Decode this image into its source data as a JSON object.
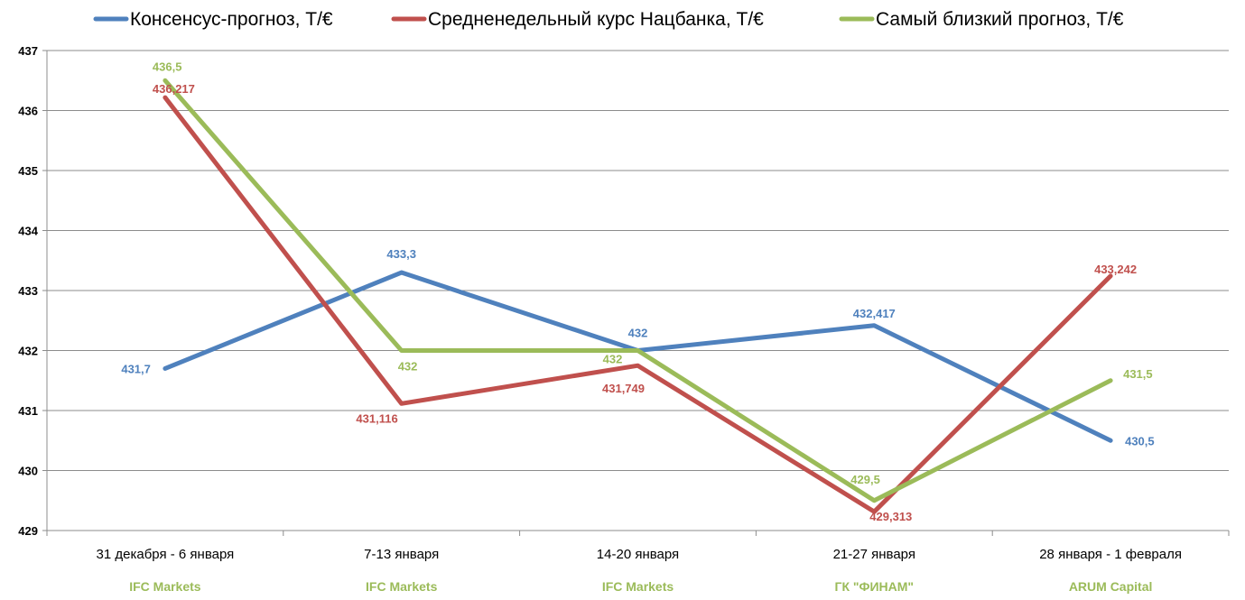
{
  "chart_data": {
    "type": "line",
    "categories": [
      "31 декабря - 6 января",
      "7-13 января",
      "14-20 января",
      "21-27 января",
      "28 января - 1 февраля"
    ],
    "category_sublabels": [
      "IFC Markets",
      "IFC Markets",
      "IFC Markets",
      "ГК \"ФИНАМ\"",
      "ARUM Capital"
    ],
    "sublabel_color": "#9bbb59",
    "series": [
      {
        "name": "Консенсус-прогноз, Т/€",
        "color": "#4f81bd",
        "values": [
          431.7,
          433.3,
          432,
          432.417,
          430.5
        ],
        "labels": [
          "431,7",
          "433,3",
          "432",
          "432,417",
          "430,5"
        ]
      },
      {
        "name": "Средненедельный курс Нацбанка, Т/€",
        "color": "#c0504d",
        "values": [
          436.217,
          431.116,
          431.749,
          429.313,
          433.242
        ],
        "labels": [
          "436,217",
          "431,116",
          "431,749",
          "429,313",
          "433,242"
        ]
      },
      {
        "name": "Самый близкий прогноз, Т/€",
        "color": "#9bbb59",
        "values": [
          436.5,
          432,
          432,
          429.5,
          431.5
        ],
        "labels": [
          "436,5",
          "432",
          "432",
          "429,5",
          "431,5"
        ]
      }
    ],
    "ylim": [
      429,
      437
    ],
    "yticks": [
      "429",
      "430",
      "431",
      "432",
      "433",
      "434",
      "435",
      "436",
      "437"
    ],
    "grid": true,
    "legend_position": "top"
  }
}
